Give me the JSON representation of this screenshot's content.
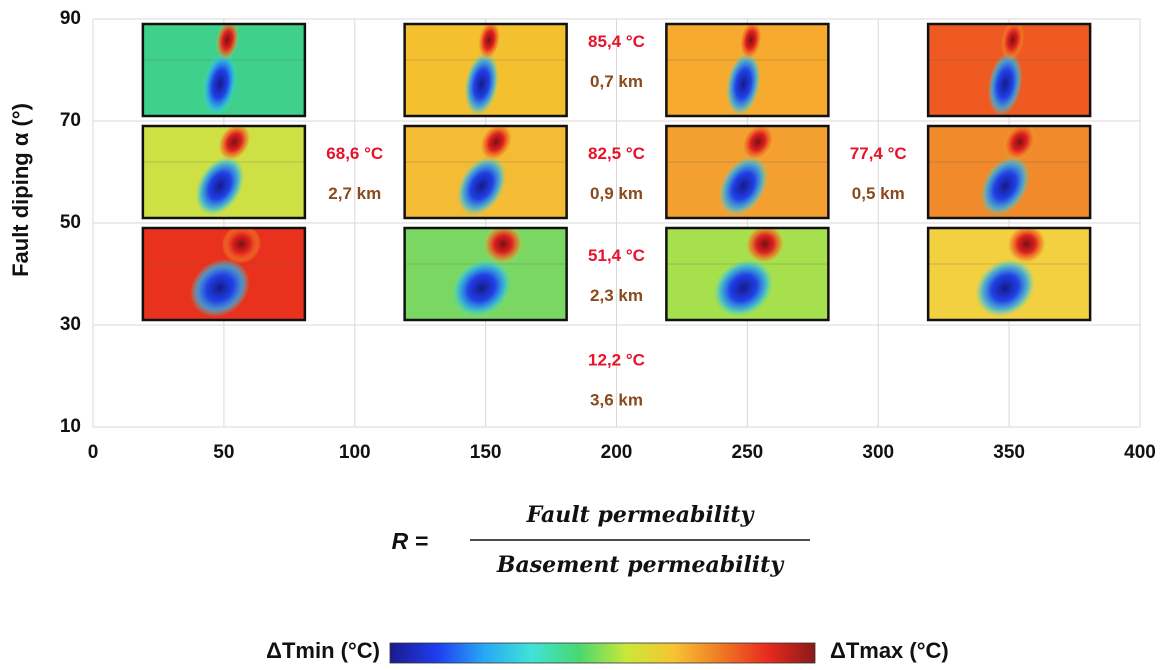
{
  "chart_data": {
    "type": "image-panels",
    "ylabel": "Fault diping α (°)",
    "xlabel_lhs": "R =",
    "xlabel_numerator": "Fault permeability",
    "xlabel_denominator": "Basement permeability",
    "xlim": [
      0,
      400
    ],
    "ylim": [
      10,
      90
    ],
    "xticks": [
      0,
      50,
      100,
      150,
      200,
      250,
      300,
      350,
      400
    ],
    "yticks": [
      10,
      30,
      50,
      70,
      90
    ],
    "grid": true,
    "temperature_color": "#e8132a",
    "depth_color": "#8b4a1c",
    "panels": [
      {
        "x": 50,
        "y": 80,
        "background": "#3fd08c"
      },
      {
        "x": 150,
        "y": 80,
        "background": "#f4c030"
      },
      {
        "x": 250,
        "y": 80,
        "background": "#f6aa2e"
      },
      {
        "x": 350,
        "y": 80,
        "background": "#ee5a22"
      },
      {
        "x": 50,
        "y": 60,
        "background": "#cfe044"
      },
      {
        "x": 150,
        "y": 60,
        "background": "#f4bc34"
      },
      {
        "x": 250,
        "y": 60,
        "background": "#f4a030"
      },
      {
        "x": 350,
        "y": 60,
        "background": "#f08a2a"
      },
      {
        "x": 50,
        "y": 40,
        "background": "#e8321e"
      },
      {
        "x": 150,
        "y": 40,
        "background": "#7ad862"
      },
      {
        "x": 250,
        "y": 40,
        "background": "#a6e04c"
      },
      {
        "x": 350,
        "y": 40,
        "background": "#f2d040"
      }
    ],
    "annotations": [
      {
        "x": 200,
        "y": 81.5,
        "temperature": "85,4 °C",
        "depth": "0,7 km"
      },
      {
        "x": 100,
        "y": 59.5,
        "temperature": "68,6 °C",
        "depth": "2,7 km"
      },
      {
        "x": 200,
        "y": 59.5,
        "temperature": "82,5 °C",
        "depth": "0,9 km"
      },
      {
        "x": 300,
        "y": 59.5,
        "temperature": "77,4 °C",
        "depth": "0,5 km"
      },
      {
        "x": 200,
        "y": 39.5,
        "temperature": "51,4 °C",
        "depth": "2,3 km"
      },
      {
        "x": 200,
        "y": 19,
        "temperature": "12,2 °C",
        "depth": "3,6 km"
      }
    ],
    "colorbar_min_label": "ΔTmin (°C)",
    "colorbar_max_label": "ΔTmax (°C)",
    "colorbar_colors": [
      "#1a1a8c",
      "#1f3df0",
      "#29a8f5",
      "#3fe3d8",
      "#48d870",
      "#c9e83a",
      "#f6c531",
      "#f07a24",
      "#e82a1e",
      "#8a1a1a"
    ]
  }
}
